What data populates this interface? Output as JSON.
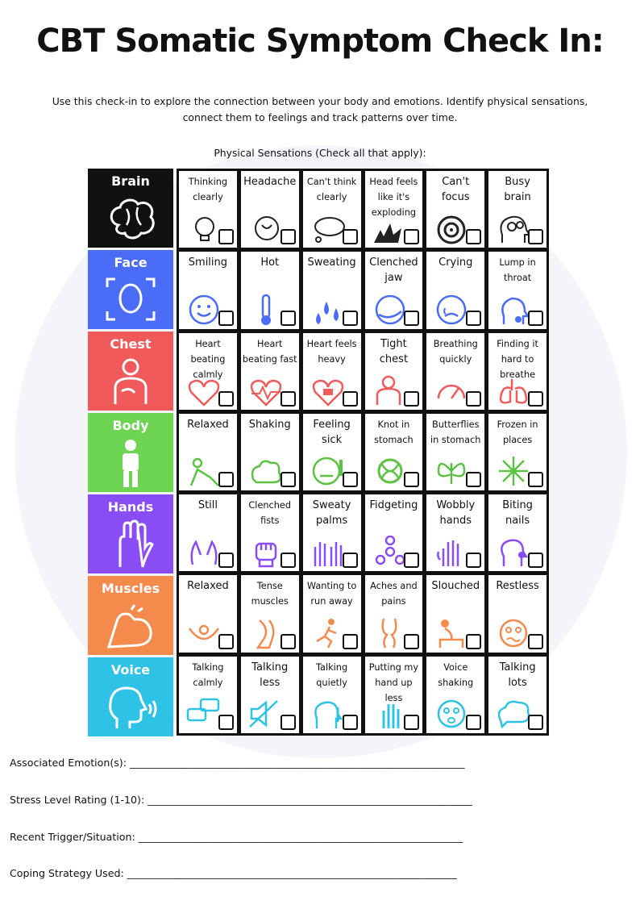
{
  "title": "CBT Somatic Symptom Check In:",
  "intro": {
    "line1": "Use this check-in to explore the connection between your body and emotions. Identify physical sensations,",
    "line2": "connect them to feelings and track patterns over time."
  },
  "sensations_heading": "Physical Sensations (Check all that apply):",
  "categories": [
    {
      "label": "Brain",
      "color": "#111111",
      "icon": "brain-icon"
    },
    {
      "label": "Face",
      "color": "#4a6cf7",
      "icon": "face-scan-icon"
    },
    {
      "label": "Chest",
      "color": "#f05a5a",
      "icon": "person-chest-icon"
    },
    {
      "label": "Body",
      "color": "#6ed552",
      "icon": "standing-person-icon"
    },
    {
      "label": "Hands",
      "color": "#8a4df5",
      "icon": "open-hand-icon"
    },
    {
      "label": "Muscles",
      "color": "#f58a4d",
      "icon": "flexed-arm-icon"
    },
    {
      "label": "Voice",
      "color": "#2ec3e6",
      "icon": "speaking-head-icon"
    }
  ],
  "rows": [
    {
      "color": "#222222",
      "cells": [
        {
          "label": "Thinking clearly",
          "icon": "lightbulb-brain-icon"
        },
        {
          "label": "Headache",
          "icon": "headache-brain-icon"
        },
        {
          "label": "Can't think clearly",
          "icon": "thought-cloud-icon"
        },
        {
          "label": "Head feels like it's exploding",
          "icon": "explosion-icon"
        },
        {
          "label": "Can't focus",
          "icon": "target-icon"
        },
        {
          "label": "Busy brain",
          "icon": "gears-head-icon"
        }
      ]
    },
    {
      "color": "#4a6cf7",
      "cells": [
        {
          "label": "Smiling",
          "icon": "smiling-face-icon"
        },
        {
          "label": "Hot",
          "icon": "thermometer-icon"
        },
        {
          "label": "Sweating",
          "icon": "sweat-drops-icon"
        },
        {
          "label": "Clenched jaw",
          "icon": "clenched-jaw-icon"
        },
        {
          "label": "Crying",
          "icon": "crying-face-icon"
        },
        {
          "label": "Lump in throat",
          "icon": "throat-icon"
        }
      ]
    },
    {
      "color": "#f05a5a",
      "cells": [
        {
          "label": "Heart beating calmly",
          "icon": "heart-icon"
        },
        {
          "label": "Heart beating fast",
          "icon": "heartbeat-icon"
        },
        {
          "label": "Heart feels heavy",
          "icon": "heavy-heart-icon"
        },
        {
          "label": "Tight chest",
          "icon": "tight-chest-icon"
        },
        {
          "label": "Breathing quickly",
          "icon": "speedometer-icon"
        },
        {
          "label": "Finding it hard to breathe",
          "icon": "lungs-icon"
        }
      ]
    },
    {
      "color": "#5cc244",
      "cells": [
        {
          "label": "Relaxed",
          "icon": "lounging-person-icon"
        },
        {
          "label": "Shaking",
          "icon": "shaking-blob-icon"
        },
        {
          "label": "Feeling sick",
          "icon": "sick-face-icon"
        },
        {
          "label": "Knot in stomach",
          "icon": "knot-icon"
        },
        {
          "label": "Butterflies in stomach",
          "icon": "butterfly-icon"
        },
        {
          "label": "Frozen in places",
          "icon": "snowflake-icon"
        }
      ]
    },
    {
      "color": "#8a4df5",
      "cells": [
        {
          "label": "Still",
          "icon": "praying-hands-icon"
        },
        {
          "label": "Clenched fists",
          "icon": "fist-icon"
        },
        {
          "label": "Sweaty palms",
          "icon": "sweaty-hands-icon"
        },
        {
          "label": "Fidgeting",
          "icon": "fidget-spinner-icon"
        },
        {
          "label": "Wobbly hands",
          "icon": "wobbly-hand-icon"
        },
        {
          "label": "Biting nails",
          "icon": "nail-biting-icon"
        }
      ]
    },
    {
      "color": "#f58a4d",
      "cells": [
        {
          "label": "Relaxed",
          "icon": "hammock-icon"
        },
        {
          "label": "Tense muscles",
          "icon": "tense-leg-icon"
        },
        {
          "label": "Wanting to run away",
          "icon": "running-person-icon"
        },
        {
          "label": "Aches and pains",
          "icon": "sore-knee-icon"
        },
        {
          "label": "Slouched",
          "icon": "slouched-person-icon"
        },
        {
          "label": "Restless",
          "icon": "restless-face-icon"
        }
      ]
    },
    {
      "color": "#2ec3e6",
      "cells": [
        {
          "label": "Talking calmly",
          "icon": "chat-bubbles-icon"
        },
        {
          "label": "Talking less",
          "icon": "muted-speaker-icon"
        },
        {
          "label": "Talking quietly",
          "icon": "shush-icon"
        },
        {
          "label": "Putting my hand up less",
          "icon": "raised-hand-icon"
        },
        {
          "label": "Voice shaking",
          "icon": "scared-face-icon"
        },
        {
          "label": "Talking lots",
          "icon": "speech-cloud-icon"
        }
      ]
    }
  ],
  "fields": [
    {
      "label": "Associated Emotion(s):",
      "line": "________________________________________________________________"
    },
    {
      "label": "Stress Level Rating (1-10):",
      "line": "______________________________________________________________"
    },
    {
      "label": "Recent Trigger/Situation:",
      "line": "______________________________________________________________"
    },
    {
      "label": "Coping Strategy Used:",
      "line": "_______________________________________________________________"
    }
  ]
}
